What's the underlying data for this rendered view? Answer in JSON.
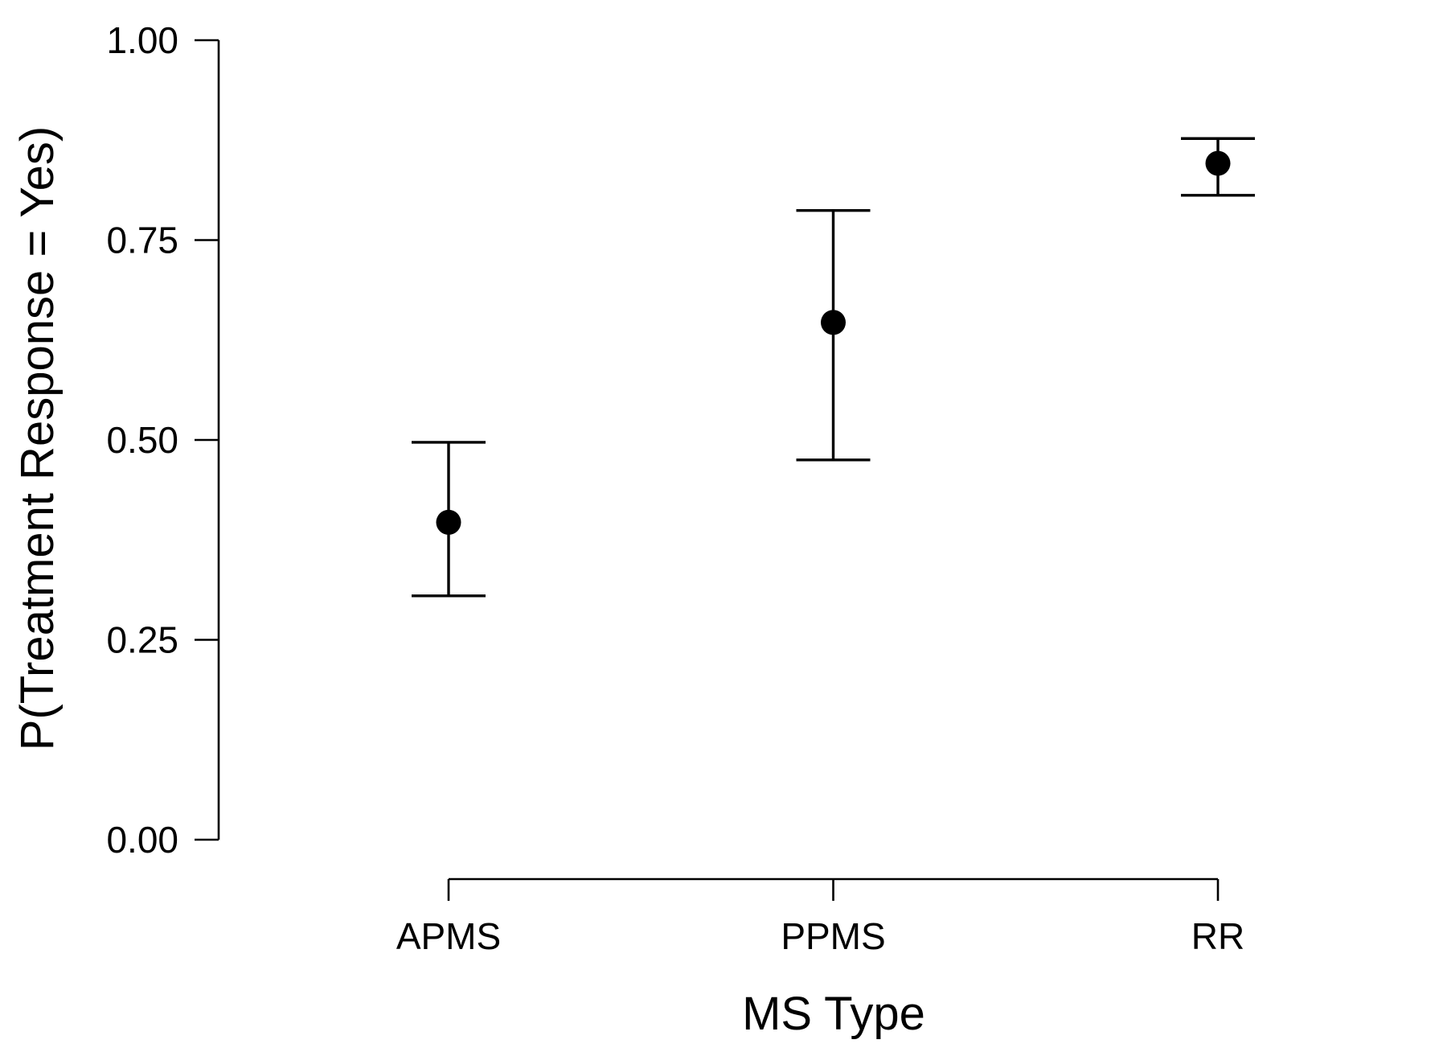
{
  "chart_data": {
    "type": "scatter",
    "title": "",
    "xlabel": "MS Type",
    "ylabel": "P(Treatment Response = Yes)",
    "categories": [
      "APMS",
      "PPMS",
      "RR"
    ],
    "series": [
      {
        "values": [
          0.397,
          0.647,
          0.846
        ],
        "lower": [
          0.305,
          0.475,
          0.806
        ],
        "upper": [
          0.497,
          0.787,
          0.877
        ]
      }
    ],
    "ylim": [
      0,
      1
    ],
    "yticks": [
      0,
      0.25,
      0.5,
      0.75,
      1
    ],
    "ytick_labels": [
      "0.00",
      "0.25",
      "0.50",
      "0.75",
      "1.00"
    ],
    "grid": false,
    "legend": "none"
  }
}
